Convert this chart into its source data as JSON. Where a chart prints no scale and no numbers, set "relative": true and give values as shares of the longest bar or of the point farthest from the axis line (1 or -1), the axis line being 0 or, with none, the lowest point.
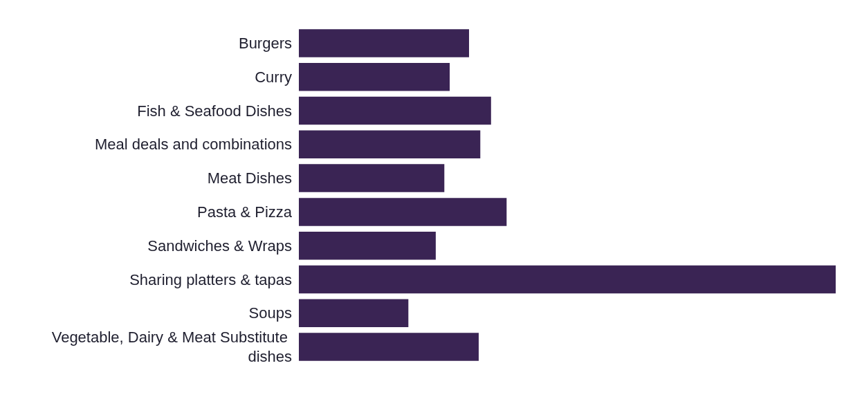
{
  "chart_data": {
    "type": "bar",
    "orientation": "horizontal",
    "relative": true,
    "categories": [
      "Burgers",
      "Curry",
      "Fish & Seafood Dishes",
      "Meal deals and combinations",
      "Meat Dishes",
      "Pasta & Pizza",
      "Sandwiches & Wraps",
      "Sharing platters & tapas",
      "Soups",
      "Vegetable, Dairy & Meat Substitute dishes"
    ],
    "values": [
      0.317,
      0.281,
      0.358,
      0.338,
      0.271,
      0.387,
      0.255,
      1.0,
      0.204,
      0.335
    ],
    "color": "#3a2454"
  }
}
